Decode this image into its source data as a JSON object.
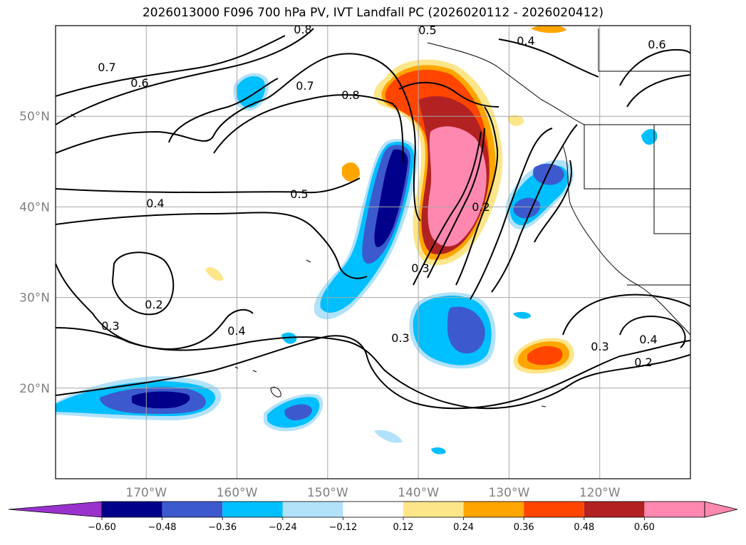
{
  "title": "2026013000 F096 700 hPa PV, IVT Landfall PC (2026020112 - 2026020412)",
  "chart_data": {
    "type": "heatmap",
    "map_extent": {
      "lon": [
        -180,
        -110
      ],
      "lat": [
        10,
        60
      ]
    },
    "lat_ticks": [
      {
        "value": 50,
        "label": "50°N"
      },
      {
        "value": 40,
        "label": "40°N"
      },
      {
        "value": 30,
        "label": "30°N"
      },
      {
        "value": 20,
        "label": "20°N"
      }
    ],
    "lon_ticks": [
      {
        "value": -170,
        "label": "170°W"
      },
      {
        "value": -160,
        "label": "160°W"
      },
      {
        "value": -150,
        "label": "150°W"
      },
      {
        "value": -140,
        "label": "140°W"
      },
      {
        "value": -130,
        "label": "130°W"
      },
      {
        "value": -120,
        "label": "120°W"
      }
    ],
    "grid": true,
    "colorbar": {
      "extend": "both",
      "under_color": "#9932cc",
      "over_color": "#ff88b0",
      "colors": [
        "#00008b",
        "#3c5acd",
        "#00bfff",
        "#b2e2fa",
        "#ffffff",
        "#fde68a",
        "#ffa500",
        "#ff4500",
        "#b22222",
        "#ff88b0"
      ],
      "tick_labels": [
        "−0.60",
        "−0.48",
        "−0.36",
        "−0.24",
        "−0.12",
        "0.12",
        "0.24",
        "0.36",
        "0.48",
        "0.60"
      ]
    },
    "contour_labels": [
      "0.8",
      "0.7",
      "0.6",
      "0.7",
      "0.8",
      "0.5",
      "0.6",
      "0.4",
      "0.4",
      "0.5",
      "0.2",
      "0.3",
      "0.2",
      "0.3",
      "0.4",
      "0.3",
      "0.3",
      "0.4",
      "0.2"
    ],
    "shaded_features": [
      {
        "name": "positive-pc-landfall-plume",
        "level": 0.6
      },
      {
        "name": "negative-pc-west-band",
        "level": -0.6
      },
      {
        "name": "negative-pc-subtropical-blob",
        "level": -0.36
      },
      {
        "name": "negative-pc-hawaii-band",
        "level": -0.6
      },
      {
        "name": "negative-pc-coastal-blob",
        "level": -0.36
      },
      {
        "name": "positive-pc-subtropical-blob",
        "level": 0.36
      }
    ]
  }
}
